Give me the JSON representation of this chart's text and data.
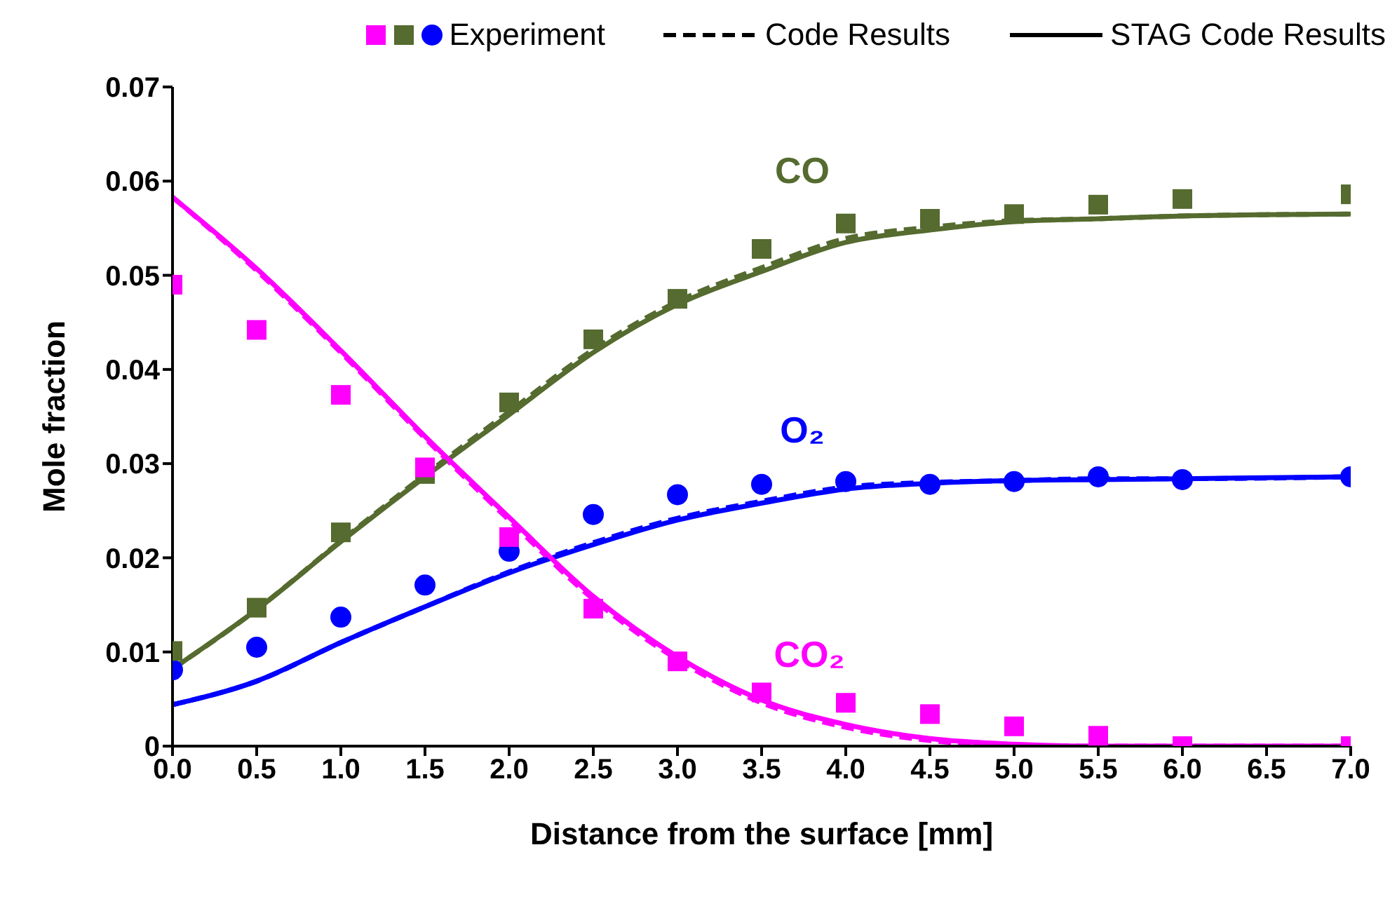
{
  "chart_data": {
    "type": "line",
    "xlabel": "Distance from the surface [mm]",
    "ylabel": "Mole fraction",
    "xlim": [
      0,
      7
    ],
    "ylim": [
      0,
      0.07
    ],
    "xticks": [
      {
        "value": 0,
        "label": "0.0"
      },
      {
        "value": 0.5,
        "label": "0.5"
      },
      {
        "value": 1,
        "label": "1.0"
      },
      {
        "value": 1.5,
        "label": "1.5"
      },
      {
        "value": 2,
        "label": "2.0"
      },
      {
        "value": 2.5,
        "label": "2.5"
      },
      {
        "value": 3,
        "label": "3.0"
      },
      {
        "value": 3.5,
        "label": "3.5"
      },
      {
        "value": 4,
        "label": "4.0"
      },
      {
        "value": 4.5,
        "label": "4.5"
      },
      {
        "value": 5,
        "label": "5.0"
      },
      {
        "value": 5.5,
        "label": "5.5"
      },
      {
        "value": 6,
        "label": "6.0"
      },
      {
        "value": 6.5,
        "label": "6.5"
      },
      {
        "value": 7,
        "label": "7.0"
      }
    ],
    "yticks": [
      0,
      0.01,
      0.02,
      0.03,
      0.04,
      0.05,
      0.06,
      0.07
    ],
    "grid": false,
    "legend": "top",
    "annotations": [
      "CO",
      "O₂",
      "CO₂",
      "Code Results",
      "STAG Code Results"
    ],
    "series": [
      {
        "name": "Experiment",
        "type": "scatter",
        "marker": "circle",
        "color": "#0000ff",
        "x": [
          0,
          0.5,
          1,
          1.5,
          2,
          2.5,
          3,
          3.5,
          4,
          4.5,
          5,
          5.5,
          6,
          7
        ],
        "values": [
          0.0081,
          0.0105,
          0.0137,
          0.0171,
          0.0207,
          0.0246,
          0.0267,
          0.0278,
          0.0281,
          0.0278,
          0.0281,
          0.0286,
          0.0283,
          0.0286
        ]
      },
      {
        "type": "scatter",
        "marker": "square",
        "color": "#556b2f",
        "x": [
          0,
          0.5,
          1,
          1.5,
          2,
          2.5,
          3,
          3.5,
          4,
          4.5,
          5,
          5.5,
          6,
          7
        ],
        "values": [
          0.0101,
          0.0147,
          0.0227,
          0.0289,
          0.0365,
          0.0432,
          0.0475,
          0.0528,
          0.0555,
          0.056,
          0.0565,
          0.0575,
          0.0581,
          0.0586
        ]
      },
      {
        "type": "scatter",
        "marker": "square",
        "color": "#ff00ff",
        "x": [
          0,
          0.5,
          1,
          1.5,
          2,
          2.5,
          3,
          3.5,
          4,
          4.5,
          5,
          5.5,
          6,
          7
        ],
        "values": [
          0.049,
          0.0442,
          0.0373,
          0.0296,
          0.0222,
          0.0146,
          0.009,
          0.0057,
          0.0046,
          0.0034,
          0.0021,
          0.0011,
          0,
          0
        ]
      },
      {
        "line_style": "dashed",
        "color": "#556b2f",
        "x": [
          0,
          0.5,
          1,
          1.5,
          2,
          2.5,
          3,
          3.5,
          4,
          4.5,
          5,
          5.5,
          6,
          7
        ],
        "values": [
          0.0082,
          0.0145,
          0.0218,
          0.0288,
          0.0355,
          0.0421,
          0.0472,
          0.0508,
          0.0539,
          0.0551,
          0.0558,
          0.056,
          0.0563,
          0.0565
        ]
      },
      {
        "line_style": "dashed",
        "color": "#0000ff",
        "x": [
          0,
          0.5,
          1,
          1.5,
          2,
          2.5,
          3,
          3.5,
          4,
          4.5,
          5,
          5.5,
          6,
          7
        ],
        "values": [
          0.0044,
          0.0069,
          0.011,
          0.0148,
          0.0185,
          0.0216,
          0.0242,
          0.026,
          0.0275,
          0.028,
          0.0282,
          0.0284,
          0.0284,
          0.0286
        ]
      },
      {
        "line_style": "dashed",
        "color": "#ff00ff",
        "x": [
          0,
          0.5,
          1,
          1.5,
          2,
          2.5,
          3,
          3.5,
          4,
          4.5,
          5,
          5.5,
          6,
          7
        ],
        "values": [
          0.0583,
          0.0505,
          0.0418,
          0.0327,
          0.024,
          0.0156,
          0.0092,
          0.0046,
          0.002,
          0.0006,
          0.0001,
          0,
          0,
          0
        ]
      },
      {
        "line_style": "solid",
        "color": "#556b2f",
        "x": [
          0,
          0.5,
          1,
          1.5,
          2,
          2.5,
          3,
          3.5,
          4,
          4.5,
          5,
          5.5,
          6,
          7
        ],
        "values": [
          0.0082,
          0.0145,
          0.0217,
          0.0286,
          0.0352,
          0.0418,
          0.0469,
          0.0504,
          0.0535,
          0.0548,
          0.0557,
          0.056,
          0.0563,
          0.0565
        ]
      },
      {
        "line_style": "solid",
        "color": "#0000ff",
        "x": [
          0,
          0.5,
          1,
          1.5,
          2,
          2.5,
          3,
          3.5,
          4,
          4.5,
          5,
          5.5,
          6,
          7
        ],
        "values": [
          0.0044,
          0.0069,
          0.011,
          0.0148,
          0.0184,
          0.0214,
          0.024,
          0.0258,
          0.0273,
          0.0279,
          0.0282,
          0.0283,
          0.0284,
          0.0286
        ]
      },
      {
        "line_style": "solid",
        "color": "#ff00ff",
        "x": [
          0,
          0.5,
          1,
          1.5,
          2,
          2.5,
          3,
          3.5,
          4,
          4.5,
          5,
          5.5,
          6,
          7
        ],
        "values": [
          0.0583,
          0.0507,
          0.042,
          0.0329,
          0.0243,
          0.0159,
          0.0095,
          0.0049,
          0.0023,
          0.0008,
          0.0002,
          0,
          0,
          0
        ]
      }
    ]
  }
}
